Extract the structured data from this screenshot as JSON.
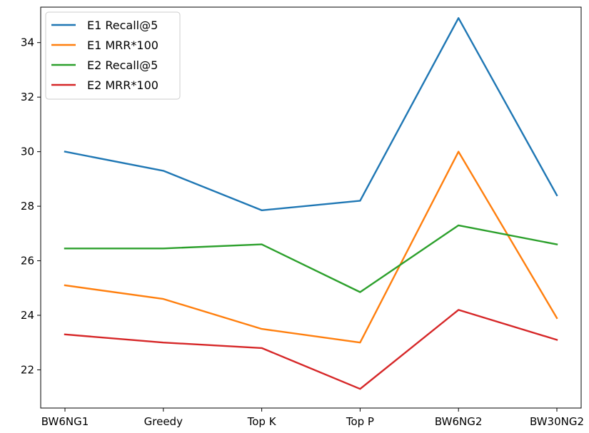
{
  "chart_data": {
    "type": "line",
    "title": "",
    "xlabel": "",
    "ylabel": "",
    "categories": [
      "BW6NG1",
      "Greedy",
      "Top K",
      "Top P",
      "BW6NG2",
      "BW30NG2"
    ],
    "ylim": [
      20.6,
      35.3
    ],
    "yticks": [
      22,
      24,
      26,
      28,
      30,
      32,
      34
    ],
    "grid": false,
    "legend_position": "top-left",
    "series": [
      {
        "name": "E1 Recall@5",
        "color": "#1f77b4",
        "values": [
          30.0,
          29.3,
          27.85,
          28.2,
          34.9,
          28.4
        ]
      },
      {
        "name": "E1 MRR*100",
        "color": "#ff7f0e",
        "values": [
          25.1,
          24.6,
          23.5,
          23.0,
          30.0,
          23.9
        ]
      },
      {
        "name": "E2 Recall@5",
        "color": "#2ca02c",
        "values": [
          26.45,
          26.45,
          26.6,
          24.85,
          27.3,
          26.6
        ]
      },
      {
        "name": "E2 MRR*100",
        "color": "#d62728",
        "values": [
          23.3,
          23.0,
          22.8,
          21.3,
          24.2,
          23.1
        ]
      }
    ]
  }
}
